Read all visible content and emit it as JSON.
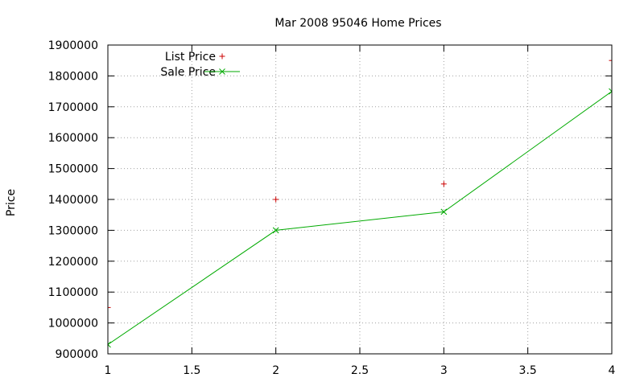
{
  "chart_data": {
    "type": "line",
    "title": "Mar 2008 95046 Home Prices",
    "xlabel": "",
    "ylabel": "Price",
    "xlim": [
      1,
      4
    ],
    "ylim": [
      900000,
      1900000
    ],
    "x_ticks": [
      "1",
      "1.5",
      "2",
      "2.5",
      "3",
      "3.5",
      "4"
    ],
    "y_ticks": [
      "900000",
      "1000000",
      "1100000",
      "1200000",
      "1300000",
      "1400000",
      "1500000",
      "1600000",
      "1700000",
      "1800000",
      "1900000"
    ],
    "grid": true,
    "legend_position": "top-left",
    "series": [
      {
        "name": "List Price",
        "style": "points",
        "marker": "+",
        "color": "#cc0000",
        "x": [
          1,
          2,
          3,
          4
        ],
        "y": [
          1050000,
          1400000,
          1450000,
          1850000
        ]
      },
      {
        "name": "Sale Price",
        "style": "linespoints",
        "marker": "x",
        "color": "#00aa00",
        "x": [
          1,
          2,
          3,
          4
        ],
        "y": [
          930000,
          1300000,
          1360000,
          1750000
        ]
      }
    ]
  }
}
